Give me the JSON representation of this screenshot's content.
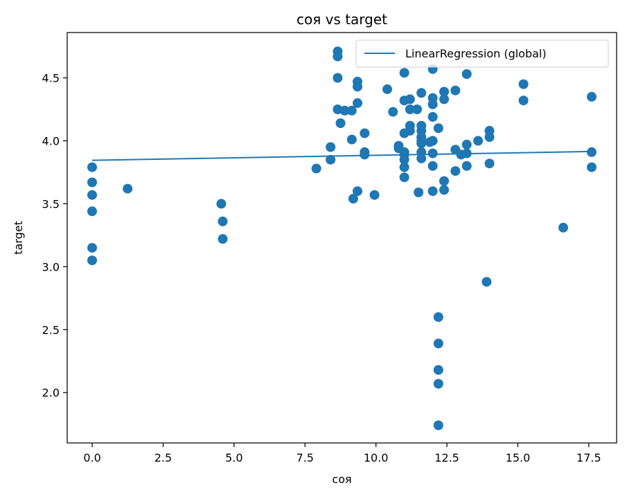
{
  "chart_data": {
    "type": "scatter",
    "title": "соя vs target",
    "xlabel": "соя",
    "ylabel": "target",
    "xlim": [
      -0.88,
      18.48
    ],
    "ylim": [
      1.6,
      4.86
    ],
    "xticks": [
      0.0,
      2.5,
      5.0,
      7.5,
      10.0,
      12.5,
      15.0,
      17.5
    ],
    "xtick_labels": [
      "0.0",
      "2.5",
      "5.0",
      "7.5",
      "10.0",
      "12.5",
      "15.0",
      "17.5"
    ],
    "yticks": [
      2.0,
      2.5,
      3.0,
      3.5,
      4.0,
      4.5
    ],
    "ytick_labels": [
      "2.0",
      "2.5",
      "3.0",
      "3.5",
      "4.0",
      "4.5"
    ],
    "grid": false,
    "legend_position": "top-right",
    "colors": {
      "points": "#1f77b4",
      "line": "#1f77b4"
    },
    "series": [
      {
        "type": "scatter",
        "points": [
          [
            0.0,
            3.79
          ],
          [
            0.0,
            3.67
          ],
          [
            0.0,
            3.57
          ],
          [
            0.0,
            3.44
          ],
          [
            0.0,
            3.15
          ],
          [
            0.0,
            3.05
          ],
          [
            1.25,
            3.62
          ],
          [
            4.55,
            3.5
          ],
          [
            4.6,
            3.36
          ],
          [
            4.6,
            3.22
          ],
          [
            7.9,
            3.78
          ],
          [
            8.4,
            3.95
          ],
          [
            8.4,
            3.85
          ],
          [
            8.65,
            4.71
          ],
          [
            8.65,
            4.67
          ],
          [
            8.65,
            4.5
          ],
          [
            8.65,
            4.25
          ],
          [
            8.75,
            4.14
          ],
          [
            8.9,
            4.24
          ],
          [
            9.15,
            4.24
          ],
          [
            9.15,
            4.01
          ],
          [
            9.2,
            3.54
          ],
          [
            9.35,
            4.47
          ],
          [
            9.35,
            4.43
          ],
          [
            9.35,
            4.3
          ],
          [
            9.35,
            3.6
          ],
          [
            9.6,
            4.06
          ],
          [
            9.6,
            3.91
          ],
          [
            9.6,
            3.89
          ],
          [
            9.95,
            3.57
          ],
          [
            10.4,
            4.41
          ],
          [
            10.6,
            4.23
          ],
          [
            10.8,
            3.96
          ],
          [
            10.8,
            3.94
          ],
          [
            11.0,
            4.54
          ],
          [
            11.0,
            4.32
          ],
          [
            11.0,
            4.06
          ],
          [
            11.0,
            3.91
          ],
          [
            11.0,
            3.89
          ],
          [
            11.0,
            3.85
          ],
          [
            11.0,
            3.79
          ],
          [
            11.0,
            3.71
          ],
          [
            11.2,
            4.33
          ],
          [
            11.2,
            4.25
          ],
          [
            11.2,
            4.12
          ],
          [
            11.2,
            4.08
          ],
          [
            11.45,
            4.25
          ],
          [
            11.5,
            3.59
          ],
          [
            11.6,
            4.38
          ],
          [
            11.6,
            4.12
          ],
          [
            11.6,
            4.08
          ],
          [
            11.6,
            4.03
          ],
          [
            11.6,
            4.0
          ],
          [
            11.6,
            3.98
          ],
          [
            11.6,
            3.91
          ],
          [
            11.6,
            3.86
          ],
          [
            11.9,
            3.99
          ],
          [
            12.0,
            4.57
          ],
          [
            12.0,
            4.34
          ],
          [
            12.0,
            4.29
          ],
          [
            12.0,
            4.19
          ],
          [
            12.0,
            4.0
          ],
          [
            12.0,
            3.9
          ],
          [
            12.0,
            3.8
          ],
          [
            12.0,
            3.6
          ],
          [
            12.2,
            4.1
          ],
          [
            12.2,
            2.6
          ],
          [
            12.2,
            2.39
          ],
          [
            12.2,
            2.18
          ],
          [
            12.2,
            2.07
          ],
          [
            12.2,
            1.74
          ],
          [
            12.4,
            4.39
          ],
          [
            12.4,
            4.33
          ],
          [
            12.4,
            3.68
          ],
          [
            12.4,
            3.61
          ],
          [
            12.8,
            4.4
          ],
          [
            12.8,
            3.93
          ],
          [
            12.8,
            3.76
          ],
          [
            13.0,
            3.89
          ],
          [
            13.2,
            4.53
          ],
          [
            13.2,
            3.97
          ],
          [
            13.2,
            3.9
          ],
          [
            13.2,
            3.8
          ],
          [
            13.6,
            4.0
          ],
          [
            13.9,
            2.88
          ],
          [
            14.0,
            4.08
          ],
          [
            14.0,
            4.03
          ],
          [
            14.0,
            3.82
          ],
          [
            15.2,
            4.45
          ],
          [
            15.2,
            4.32
          ],
          [
            16.6,
            3.31
          ],
          [
            17.6,
            4.35
          ],
          [
            17.6,
            3.91
          ],
          [
            17.6,
            3.79
          ]
        ]
      },
      {
        "type": "line",
        "name": "LinearRegression (global)",
        "x": [
          0.0,
          17.6
        ],
        "y": [
          3.845,
          3.915
        ]
      }
    ]
  }
}
